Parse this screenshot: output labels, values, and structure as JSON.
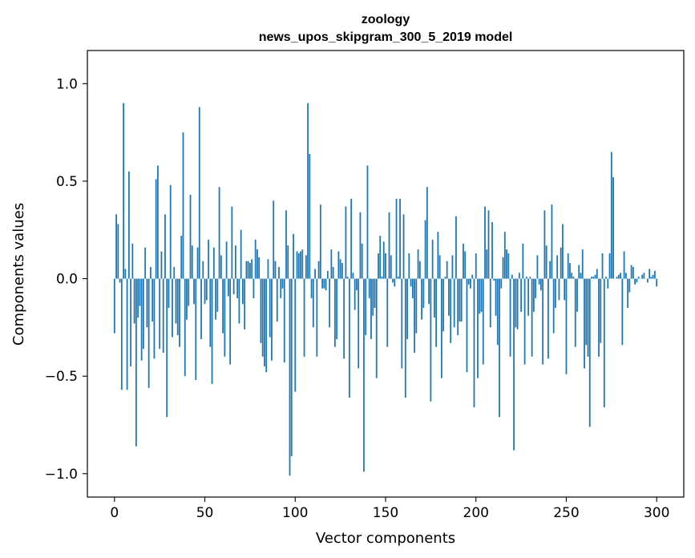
{
  "chart_data": {
    "type": "bar",
    "title": "zoology",
    "subtitle": "news_upos_skipgram_300_5_2019 model",
    "xlabel": "Vector components",
    "ylabel": "Components values",
    "xlim": [
      -15,
      315
    ],
    "ylim": [
      -1.12,
      1.17
    ],
    "xticks": [
      0,
      50,
      100,
      150,
      200,
      250,
      300
    ],
    "xtick_labels": [
      "0",
      "50",
      "100",
      "150",
      "200",
      "250",
      "300"
    ],
    "yticks": [
      -1.0,
      -0.5,
      0.0,
      0.5,
      1.0
    ],
    "ytick_labels": [
      "−1.0",
      "−0.5",
      "0.0",
      "0.5",
      "1.0"
    ],
    "grid": false,
    "bar_color": "#1f77b4",
    "values": [
      -0.28,
      0.33,
      0.28,
      -0.02,
      -0.57,
      0.9,
      0.05,
      -0.57,
      0.55,
      -0.45,
      0.18,
      -0.23,
      -0.86,
      -0.2,
      -0.14,
      -0.42,
      -0.36,
      0.16,
      -0.25,
      -0.56,
      0.06,
      -0.22,
      -0.41,
      0.51,
      0.58,
      -0.36,
      0.14,
      -0.38,
      0.33,
      -0.71,
      -0.15,
      0.48,
      -0.3,
      0.06,
      -0.23,
      -0.29,
      -0.35,
      0.22,
      0.75,
      -0.5,
      -0.21,
      -0.14,
      0.43,
      0.17,
      -0.13,
      -0.52,
      0.16,
      0.88,
      -0.31,
      0.09,
      -0.13,
      -0.11,
      0.2,
      -0.35,
      -0.54,
      0.16,
      -0.21,
      -0.17,
      0.47,
      0.12,
      -0.28,
      -0.4,
      0.19,
      -0.09,
      -0.44,
      0.37,
      -0.08,
      0.17,
      -0.1,
      -0.23,
      0.25,
      -0.13,
      -0.26,
      0.09,
      0.09,
      0.08,
      0.1,
      -0.1,
      0.2,
      0.15,
      0.11,
      -0.33,
      -0.4,
      -0.45,
      -0.48,
      0.1,
      -0.3,
      -0.42,
      0.4,
      0.09,
      -0.22,
      0.06,
      -0.1,
      -0.05,
      -0.43,
      0.35,
      0.17,
      -1.01,
      -0.91,
      0.23,
      -0.58,
      0.14,
      0.13,
      0.14,
      0.15,
      -0.4,
      0.12,
      0.9,
      0.64,
      -0.1,
      -0.25,
      0.05,
      -0.4,
      0.09,
      0.38,
      -0.05,
      -0.05,
      -0.06,
      0.04,
      -0.25,
      0.15,
      0.06,
      -0.35,
      -0.31,
      0.14,
      0.1,
      0.08,
      -0.41,
      0.37,
      0.01,
      -0.61,
      0.41,
      0.03,
      -0.16,
      -0.06,
      -0.46,
      0.34,
      0.18,
      -0.99,
      -0.29,
      0.58,
      -0.1,
      -0.31,
      -0.19,
      -0.15,
      -0.51,
      0.13,
      0.22,
      0.01,
      0.19,
      0.13,
      -0.35,
      0.34,
      0.12,
      -0.02,
      -0.04,
      0.41,
      0.01,
      0.41,
      -0.46,
      0.33,
      -0.61,
      -0.31,
      0.13,
      -0.04,
      -0.1,
      -0.38,
      -0.28,
      0.15,
      0.09,
      -0.21,
      -0.15,
      0.3,
      0.47,
      -0.13,
      -0.63,
      0.2,
      -0.2,
      -0.35,
      0.24,
      0.12,
      -0.51,
      -0.27,
      0.01,
      0.09,
      -0.19,
      -0.33,
      0.12,
      -0.25,
      0.32,
      -0.29,
      -0.22,
      -0.22,
      0.18,
      0.14,
      -0.48,
      -0.03,
      -0.05,
      0.02,
      -0.66,
      0.13,
      -0.51,
      -0.18,
      -0.17,
      -0.44,
      0.37,
      0.15,
      0.35,
      -0.25,
      0.29,
      -0.01,
      -0.19,
      -0.34,
      -0.71,
      -0.05,
      0.11,
      0.24,
      0.15,
      0.13,
      -0.4,
      0.02,
      -0.88,
      -0.25,
      -0.26,
      0.03,
      -0.17,
      0.18,
      -0.44,
      0.01,
      -0.19,
      0.01,
      -0.4,
      -0.17,
      -0.1,
      0.12,
      -0.03,
      -0.06,
      -0.44,
      0.35,
      0.17,
      -0.41,
      0.09,
      0.38,
      -0.28,
      -0.15,
      0.12,
      -0.11,
      0.16,
      0.28,
      -0.11,
      -0.49,
      0.13,
      0.08,
      0.03,
      0.01,
      -0.35,
      -0.17,
      0.07,
      0.03,
      0.15,
      -0.46,
      -0.34,
      -0.4,
      -0.76,
      0.01,
      0.01,
      0.02,
      0.05,
      -0.4,
      -0.33,
      0.13,
      -0.66,
      0.01,
      -0.05,
      0.13,
      0.65,
      0.52,
      0.0,
      0.01,
      0.02,
      0.03,
      -0.34,
      0.14,
      0.03,
      -0.15,
      -0.07,
      0.07,
      0.06,
      -0.03,
      -0.02,
      0.01,
      0.0,
      0.02,
      0.03,
      0.0,
      -0.02,
      0.05,
      0.01,
      0.02,
      0.04,
      -0.04
    ]
  }
}
